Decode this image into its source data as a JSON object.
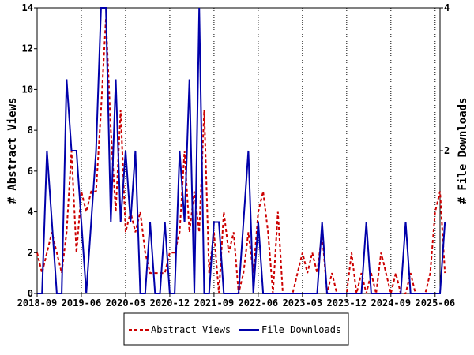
{
  "chart_data": {
    "type": "line",
    "title": "",
    "ylabel_left": "# Abstract Views",
    "ylabel_right": "# File Downloads",
    "xlabel": "",
    "x_ticks": [
      "2018-09",
      "2019-06",
      "2020-03",
      "2020-12",
      "2021-09",
      "2022-06",
      "2023-03",
      "2023-12",
      "2024-09",
      "2025-06"
    ],
    "x_range_months": 82,
    "y_left_ticks": [
      0,
      2,
      4,
      6,
      8,
      10,
      12,
      14
    ],
    "y_left_range": [
      0,
      14
    ],
    "y_right_ticks": [
      2,
      4
    ],
    "y_right_range": [
      0,
      4
    ],
    "grid": "vertical at x ticks",
    "legend_position": "bottom",
    "series": [
      {
        "name": "Abstract Views",
        "axis": "left",
        "color": "#cc0000",
        "style": "dashed",
        "points": [
          [
            0,
            2
          ],
          [
            1,
            1
          ],
          [
            2,
            2
          ],
          [
            3,
            3
          ],
          [
            4,
            2
          ],
          [
            5,
            1
          ],
          [
            6,
            3
          ],
          [
            7,
            7
          ],
          [
            8,
            2
          ],
          [
            9,
            5
          ],
          [
            10,
            4
          ],
          [
            11,
            5
          ],
          [
            12,
            5
          ],
          [
            13,
            9
          ],
          [
            14,
            13.5
          ],
          [
            15,
            8
          ],
          [
            16,
            4
          ],
          [
            17,
            9
          ],
          [
            18,
            3
          ],
          [
            19,
            4
          ],
          [
            20,
            3
          ],
          [
            21,
            4
          ],
          [
            22,
            2
          ],
          [
            23,
            1
          ],
          [
            24,
            1
          ],
          [
            25,
            1
          ],
          [
            26,
            1
          ],
          [
            27,
            2
          ],
          [
            28,
            2
          ],
          [
            29,
            3
          ],
          [
            30,
            7
          ],
          [
            31,
            3
          ],
          [
            32,
            5
          ],
          [
            33,
            3
          ],
          [
            34,
            9
          ],
          [
            35,
            1
          ],
          [
            36,
            3
          ],
          [
            37,
            0
          ],
          [
            38,
            4
          ],
          [
            39,
            2
          ],
          [
            40,
            3
          ],
          [
            41,
            0
          ],
          [
            42,
            1
          ],
          [
            43,
            3
          ],
          [
            44,
            1
          ],
          [
            45,
            4
          ],
          [
            46,
            5
          ],
          [
            47,
            3
          ],
          [
            48,
            0
          ],
          [
            49,
            4
          ],
          [
            50,
            0
          ],
          [
            51,
            0
          ],
          [
            52,
            0
          ],
          [
            53,
            1
          ],
          [
            54,
            2
          ],
          [
            55,
            1
          ],
          [
            56,
            2
          ],
          [
            57,
            1
          ],
          [
            58,
            3
          ],
          [
            59,
            0
          ],
          [
            60,
            1
          ],
          [
            61,
            0
          ],
          [
            62,
            0
          ],
          [
            63,
            0
          ],
          [
            64,
            2
          ],
          [
            65,
            0
          ],
          [
            66,
            1
          ],
          [
            67,
            0
          ],
          [
            68,
            1
          ],
          [
            69,
            0
          ],
          [
            70,
            2
          ],
          [
            71,
            1
          ],
          [
            72,
            0
          ],
          [
            73,
            1
          ],
          [
            74,
            0
          ],
          [
            75,
            0
          ],
          [
            76,
            1
          ],
          [
            77,
            0
          ],
          [
            78,
            0
          ],
          [
            79,
            0
          ],
          [
            80,
            1
          ],
          [
            81,
            4
          ],
          [
            82,
            5
          ],
          [
            83,
            1
          ]
        ]
      },
      {
        "name": "File Downloads",
        "axis": "right",
        "color": "#0000aa",
        "style": "solid",
        "points": [
          [
            0,
            0
          ],
          [
            1,
            0
          ],
          [
            2,
            2
          ],
          [
            3,
            1
          ],
          [
            4,
            0
          ],
          [
            5,
            0
          ],
          [
            6,
            3
          ],
          [
            7,
            2
          ],
          [
            8,
            2
          ],
          [
            9,
            1
          ],
          [
            10,
            0
          ],
          [
            11,
            1
          ],
          [
            12,
            2
          ],
          [
            13,
            4
          ],
          [
            14,
            4
          ],
          [
            15,
            1
          ],
          [
            16,
            3
          ],
          [
            17,
            1
          ],
          [
            18,
            2
          ],
          [
            19,
            1
          ],
          [
            20,
            2
          ],
          [
            21,
            0
          ],
          [
            22,
            0
          ],
          [
            23,
            1
          ],
          [
            24,
            0
          ],
          [
            25,
            0
          ],
          [
            26,
            1
          ],
          [
            27,
            0
          ],
          [
            28,
            0
          ],
          [
            29,
            2
          ],
          [
            30,
            1
          ],
          [
            31,
            3
          ],
          [
            32,
            0
          ],
          [
            33,
            4
          ],
          [
            34,
            0
          ],
          [
            35,
            0
          ],
          [
            36,
            1
          ],
          [
            37,
            1
          ],
          [
            38,
            0
          ],
          [
            39,
            0
          ],
          [
            40,
            0
          ],
          [
            41,
            0
          ],
          [
            42,
            1
          ],
          [
            43,
            2
          ],
          [
            44,
            0
          ],
          [
            45,
            1
          ],
          [
            46,
            0
          ],
          [
            47,
            0
          ],
          [
            48,
            0
          ],
          [
            49,
            0
          ],
          [
            50,
            0
          ],
          [
            51,
            0
          ],
          [
            52,
            0
          ],
          [
            53,
            0
          ],
          [
            54,
            0
          ],
          [
            55,
            0
          ],
          [
            56,
            0
          ],
          [
            57,
            0
          ],
          [
            58,
            1
          ],
          [
            59,
            0
          ],
          [
            60,
            0
          ],
          [
            61,
            0
          ],
          [
            62,
            0
          ],
          [
            63,
            0
          ],
          [
            64,
            0
          ],
          [
            65,
            0
          ],
          [
            66,
            0
          ],
          [
            67,
            1
          ],
          [
            68,
            0
          ],
          [
            69,
            0
          ],
          [
            70,
            0
          ],
          [
            71,
            0
          ],
          [
            72,
            0
          ],
          [
            73,
            0
          ],
          [
            74,
            0
          ],
          [
            75,
            1
          ],
          [
            76,
            0
          ],
          [
            77,
            0
          ],
          [
            78,
            0
          ],
          [
            79,
            0
          ],
          [
            80,
            0
          ],
          [
            81,
            0
          ],
          [
            82,
            0
          ],
          [
            83,
            1
          ]
        ]
      }
    ]
  }
}
